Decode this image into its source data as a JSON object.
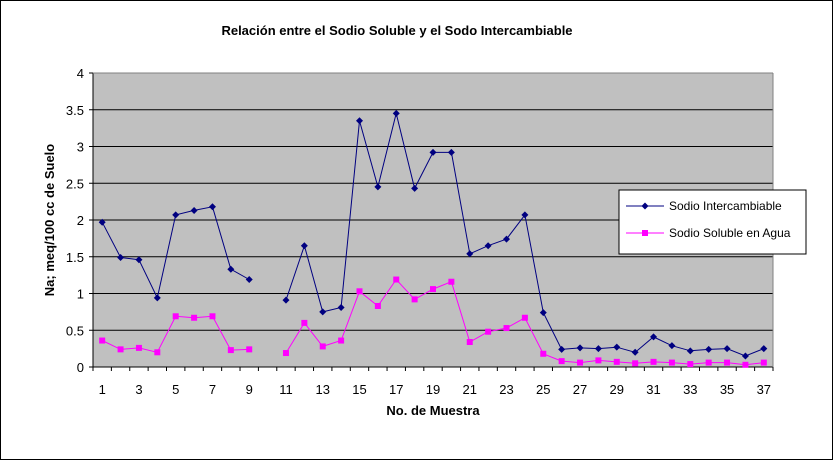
{
  "chart_data": {
    "type": "line",
    "title": "Relación entre el Sodio Soluble y el Sodo Intercambiable",
    "xlabel": "No. de Muestra",
    "ylabel": "Na; meq/100 cc de Suelo",
    "ylim": [
      0,
      4
    ],
    "yticks": [
      0,
      0.5,
      1,
      1.5,
      2,
      2.5,
      3,
      3.5,
      4
    ],
    "ytick_labels": [
      "0",
      "0.5",
      "1",
      "1.5",
      "2",
      "2.5",
      "3",
      "3.5",
      "4"
    ],
    "x": [
      1,
      2,
      3,
      4,
      5,
      6,
      7,
      8,
      9,
      10,
      11,
      12,
      13,
      14,
      15,
      16,
      17,
      18,
      19,
      20,
      21,
      22,
      23,
      24,
      25,
      26,
      27,
      28,
      29,
      30,
      31,
      32,
      33,
      34,
      35,
      36,
      37
    ],
    "xtick_labels": [
      "1",
      "3",
      "5",
      "7",
      "9",
      "11",
      "13",
      "15",
      "17",
      "19",
      "21",
      "23",
      "25",
      "27",
      "29",
      "31",
      "33",
      "35",
      "37"
    ],
    "grid": true,
    "legend_position": "right",
    "plot_background": "#c0c0c0",
    "series": [
      {
        "name": "Sodio Intercambiable",
        "color": "#000080",
        "marker": "diamond",
        "values": [
          1.97,
          1.49,
          1.46,
          0.94,
          2.07,
          2.13,
          2.18,
          1.33,
          1.19,
          null,
          0.91,
          1.65,
          0.75,
          0.81,
          3.35,
          2.45,
          3.45,
          2.43,
          2.92,
          2.92,
          1.54,
          1.65,
          1.74,
          2.07,
          0.74,
          0.24,
          0.26,
          0.25,
          0.27,
          0.2,
          0.41,
          0.29,
          0.22,
          0.24,
          0.25,
          0.15,
          0.25
        ]
      },
      {
        "name": "Sodio Soluble en Agua",
        "color": "#ff00ff",
        "marker": "square",
        "values": [
          0.36,
          0.24,
          0.26,
          0.2,
          0.69,
          0.67,
          0.69,
          0.23,
          0.24,
          null,
          0.19,
          0.6,
          0.28,
          0.36,
          1.03,
          0.83,
          1.19,
          0.92,
          1.06,
          1.16,
          0.34,
          0.48,
          0.53,
          0.67,
          0.18,
          0.08,
          0.06,
          0.09,
          0.07,
          0.05,
          0.07,
          0.06,
          0.04,
          0.06,
          0.06,
          0.03,
          0.06
        ]
      }
    ]
  }
}
